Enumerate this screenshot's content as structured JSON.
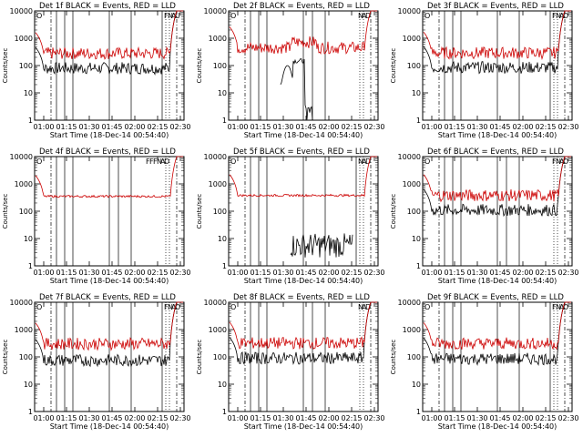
{
  "chart_data": [
    {
      "type": "line",
      "title": "Det 1f BLACK = Events, RED = LLD",
      "xlabel": "Start Time (18-Dec-14 00:54:40)",
      "ylabel": "Counts/sec",
      "yscale": "log",
      "ylim": [
        1,
        10000
      ],
      "xticks": [
        "01:00",
        "01:15",
        "01:30",
        "01:45",
        "02:00",
        "02:15",
        "02:30"
      ],
      "yticks": [
        "1",
        "10",
        "100",
        "1000",
        "10000"
      ],
      "markers": [
        "O",
        "F",
        "N",
        "A",
        "U"
      ],
      "series": [
        {
          "name": "Events",
          "color": "#000000",
          "profile": "dense",
          "level": 80
        },
        {
          "name": "LLD",
          "color": "#cc0000",
          "profile": "dense",
          "level": 280
        }
      ]
    },
    {
      "type": "line",
      "title": "Det 2f BLACK = Events, RED = LLD",
      "xlabel": "Start Time (18-Dec-14 00:54:40)",
      "ylabel": "Counts/sec",
      "yscale": "log",
      "ylim": [
        1,
        10000
      ],
      "xticks": [
        "01:00",
        "01:15",
        "01:30",
        "01:45",
        "02:00",
        "02:15",
        "02:30"
      ],
      "yticks": [
        "1",
        "10",
        "100",
        "1000",
        "10000"
      ],
      "markers": [
        "O",
        "N",
        "A",
        "D"
      ],
      "series": [
        {
          "name": "Events",
          "color": "#000000",
          "profile": "det2",
          "level": 100
        },
        {
          "name": "LLD",
          "color": "#cc0000",
          "profile": "bump",
          "level": 450
        }
      ]
    },
    {
      "type": "line",
      "title": "Det 3f BLACK = Events, RED = LLD",
      "xlabel": "Start Time (18-Dec-14 00:54:40)",
      "ylabel": "Counts/sec",
      "yscale": "log",
      "ylim": [
        1,
        10000
      ],
      "xticks": [
        "01:00",
        "01:15",
        "01:30",
        "01:45",
        "02:00",
        "02:15",
        "02:30"
      ],
      "yticks": [
        "1",
        "10",
        "100",
        "1000",
        "10000"
      ],
      "markers": [
        "O",
        "F",
        "N",
        "A",
        "D"
      ],
      "series": [
        {
          "name": "Events",
          "color": "#000000",
          "profile": "dense",
          "level": 85
        },
        {
          "name": "LLD",
          "color": "#cc0000",
          "profile": "dense",
          "level": 290
        }
      ]
    },
    {
      "type": "line",
      "title": "Det 4f BLACK = Events, RED = LLD",
      "xlabel": "Start Time (18-Dec-14 00:54:40)",
      "ylabel": "Counts/sec",
      "yscale": "log",
      "ylim": [
        1,
        10000
      ],
      "xticks": [
        "01:00",
        "01:15",
        "01:30",
        "01:45",
        "02:00",
        "02:15",
        "02:30"
      ],
      "yticks": [
        "1",
        "10",
        "100",
        "1000",
        "10000"
      ],
      "markers": [
        "O",
        "F",
        "F",
        "F",
        "N",
        "A",
        "D"
      ],
      "series": [
        {
          "name": "Events",
          "color": "#000000",
          "profile": "none",
          "level": 0
        },
        {
          "name": "LLD",
          "color": "#cc0000",
          "profile": "smooth",
          "level": 350
        }
      ]
    },
    {
      "type": "line",
      "title": "Det 5f BLACK = Events, RED = LLD",
      "xlabel": "Start Time (18-Dec-14 00:54:40)",
      "ylabel": "Counts/sec",
      "yscale": "log",
      "ylim": [
        1,
        10000
      ],
      "xticks": [
        "01:00",
        "01:15",
        "01:30",
        "01:45",
        "02:00",
        "02:15",
        "02:30"
      ],
      "yticks": [
        "1",
        "10",
        "100",
        "1000",
        "10000"
      ],
      "markers": [
        "O",
        "N",
        "A",
        "D"
      ],
      "series": [
        {
          "name": "Events",
          "color": "#000000",
          "profile": "det5",
          "level": 5
        },
        {
          "name": "LLD",
          "color": "#cc0000",
          "profile": "smooth",
          "level": 380
        }
      ]
    },
    {
      "type": "line",
      "title": "Det 6f BLACK = Events, RED = LLD",
      "xlabel": "Start Time (18-Dec-14 00:54:40)",
      "ylabel": "Counts/sec",
      "yscale": "log",
      "ylim": [
        1,
        10000
      ],
      "xticks": [
        "01:00",
        "01:15",
        "01:30",
        "01:45",
        "02:00",
        "02:15",
        "02:30"
      ],
      "yticks": [
        "1",
        "10",
        "100",
        "1000",
        "10000"
      ],
      "markers": [
        "O",
        "F",
        "N",
        "A",
        "D"
      ],
      "series": [
        {
          "name": "Events",
          "color": "#000000",
          "profile": "dense",
          "level": 110
        },
        {
          "name": "LLD",
          "color": "#cc0000",
          "profile": "dense",
          "level": 380
        }
      ]
    },
    {
      "type": "line",
      "title": "Det 7f BLACK = Events, RED = LLD",
      "xlabel": "Start Time (18-Dec-14 00:54:40)",
      "ylabel": "Counts/sec",
      "yscale": "log",
      "ylim": [
        1,
        10000
      ],
      "xticks": [
        "01:00",
        "01:15",
        "01:30",
        "01:45",
        "02:00",
        "02:15",
        "02:30"
      ],
      "yticks": [
        "1",
        "10",
        "100",
        "1000",
        "10000"
      ],
      "markers": [
        "O",
        "F",
        "N",
        "A",
        "D"
      ],
      "series": [
        {
          "name": "Events",
          "color": "#000000",
          "profile": "dense",
          "level": 75
        },
        {
          "name": "LLD",
          "color": "#cc0000",
          "profile": "dense",
          "level": 300
        }
      ]
    },
    {
      "type": "line",
      "title": "Det 8f BLACK = Events, RED = LLD",
      "xlabel": "Start Time (18-Dec-14 00:54:40)",
      "ylabel": "Counts/sec",
      "yscale": "log",
      "ylim": [
        1,
        10000
      ],
      "xticks": [
        "01:00",
        "01:15",
        "01:30",
        "01:45",
        "02:00",
        "02:15",
        "02:30"
      ],
      "yticks": [
        "1",
        "10",
        "100",
        "1000",
        "10000"
      ],
      "markers": [
        "O",
        "N",
        "A",
        "D"
      ],
      "series": [
        {
          "name": "Events",
          "color": "#000000",
          "profile": "dense",
          "level": 90
        },
        {
          "name": "LLD",
          "color": "#cc0000",
          "profile": "dense",
          "level": 320
        }
      ]
    },
    {
      "type": "line",
      "title": "Det 9f BLACK = Events, RED = LLD",
      "xlabel": "Start Time (18-Dec-14 00:54:40)",
      "ylabel": "Counts/sec",
      "yscale": "log",
      "ylim": [
        1,
        10000
      ],
      "xticks": [
        "01:00",
        "01:15",
        "01:30",
        "01:45",
        "02:00",
        "02:15",
        "02:30"
      ],
      "yticks": [
        "1",
        "10",
        "100",
        "1000",
        "10000"
      ],
      "markers": [
        "O",
        "F",
        "N",
        "A",
        "D"
      ],
      "series": [
        {
          "name": "Events",
          "color": "#000000",
          "profile": "dense",
          "level": 85
        },
        {
          "name": "LLD",
          "color": "#cc0000",
          "profile": "dense",
          "level": 310
        }
      ]
    }
  ]
}
